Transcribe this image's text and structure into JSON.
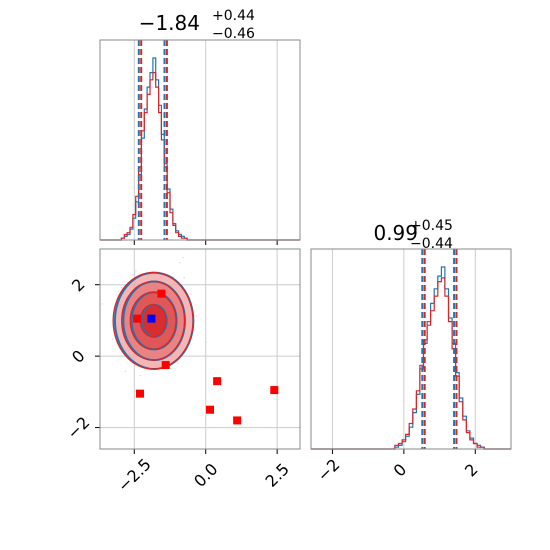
{
  "colors": {
    "blue": "#1f77b4",
    "red": "#d62728",
    "grid": "#cccccc",
    "frame": "#888888",
    "marker_red": "#ff0000",
    "marker_blue": "#0000ff"
  },
  "chart_data": [
    {
      "type": "step-histogram",
      "title": {
        "main": "−1.84",
        "upper": "+0.44",
        "lower": "−0.46"
      },
      "parameter": "x",
      "xlim": [
        -3.7,
        3.3
      ],
      "x_ticks": [
        -2.5,
        0.0,
        2.5
      ],
      "x_tick_labels": [],
      "median": -1.84,
      "quantiles": [
        -2.3,
        -1.4
      ],
      "series": [
        {
          "color": "blue",
          "x": [
            -2.9,
            -2.8,
            -2.7,
            -2.6,
            -2.5,
            -2.4,
            -2.3,
            -2.2,
            -2.1,
            -2.0,
            -1.9,
            -1.8,
            -1.7,
            -1.6,
            -1.5,
            -1.4,
            -1.3,
            -1.2,
            -1.1,
            -1.0,
            -0.9,
            -0.8,
            -0.7
          ],
          "counts": [
            0.01,
            0.02,
            0.03,
            0.06,
            0.12,
            0.21,
            0.36,
            0.56,
            0.72,
            0.84,
            0.92,
            1.0,
            0.88,
            0.74,
            0.58,
            0.42,
            0.28,
            0.17,
            0.09,
            0.05,
            0.03,
            0.02,
            0.01
          ]
        },
        {
          "color": "red",
          "x": [
            -2.9,
            -2.8,
            -2.7,
            -2.6,
            -2.5,
            -2.4,
            -2.3,
            -2.2,
            -2.1,
            -2.0,
            -1.9,
            -1.8,
            -1.7,
            -1.6,
            -1.5,
            -1.4,
            -1.3,
            -1.2,
            -1.1,
            -1.0,
            -0.9,
            -0.8,
            -0.7
          ],
          "counts": [
            0.01,
            0.03,
            0.04,
            0.07,
            0.14,
            0.24,
            0.4,
            0.6,
            0.7,
            0.8,
            0.88,
            0.92,
            0.84,
            0.7,
            0.55,
            0.4,
            0.26,
            0.15,
            0.08,
            0.04,
            0.02,
            0.01,
            0.01
          ]
        }
      ]
    },
    {
      "type": "step-histogram",
      "title": {
        "main": "0.99",
        "upper": "+0.45",
        "lower": "−0.44"
      },
      "parameter": "y",
      "xlim": [
        -2.6,
        3.0
      ],
      "x_ticks": [
        -2,
        0,
        2
      ],
      "x_tick_labels": [
        "−2",
        "0",
        "2"
      ],
      "median": 0.99,
      "quantiles": [
        0.55,
        1.44
      ],
      "series": [
        {
          "color": "blue",
          "x": [
            -0.2,
            -0.1,
            0.0,
            0.1,
            0.2,
            0.3,
            0.4,
            0.5,
            0.6,
            0.7,
            0.8,
            0.9,
            1.0,
            1.1,
            1.2,
            1.3,
            1.4,
            1.5,
            1.6,
            1.7,
            1.8,
            1.9,
            2.0,
            2.1,
            2.2
          ],
          "counts": [
            0.01,
            0.02,
            0.04,
            0.07,
            0.12,
            0.2,
            0.3,
            0.44,
            0.58,
            0.7,
            0.8,
            0.88,
            0.95,
            1.0,
            0.88,
            0.72,
            0.58,
            0.42,
            0.28,
            0.18,
            0.1,
            0.06,
            0.03,
            0.02,
            0.01
          ]
        },
        {
          "color": "red",
          "x": [
            -0.2,
            -0.1,
            0.0,
            0.1,
            0.2,
            0.3,
            0.4,
            0.5,
            0.6,
            0.7,
            0.8,
            0.9,
            1.0,
            1.1,
            1.2,
            1.3,
            1.4,
            1.5,
            1.6,
            1.7,
            1.8,
            1.9,
            2.0,
            2.1,
            2.2
          ],
          "counts": [
            0.02,
            0.03,
            0.05,
            0.08,
            0.14,
            0.22,
            0.32,
            0.46,
            0.6,
            0.68,
            0.76,
            0.84,
            0.92,
            0.94,
            0.84,
            0.7,
            0.55,
            0.4,
            0.26,
            0.16,
            0.09,
            0.05,
            0.03,
            0.01,
            0.01
          ]
        }
      ]
    },
    {
      "type": "scatter-contour",
      "xlim": [
        -3.7,
        3.3
      ],
      "ylim": [
        -2.6,
        3.0
      ],
      "x_ticks": [
        -2.5,
        0.0,
        2.5
      ],
      "x_tick_labels": [
        "−2.5",
        "0.0",
        "2.5"
      ],
      "y_ticks": [
        -2,
        0,
        2
      ],
      "y_tick_labels": [
        "−2",
        "0",
        "2"
      ],
      "center": [
        -1.84,
        0.99
      ],
      "contour_levels": [
        {
          "rx": 0.45,
          "ry": 0.45
        },
        {
          "rx": 0.8,
          "ry": 0.8
        },
        {
          "rx": 1.1,
          "ry": 1.1
        },
        {
          "rx": 1.4,
          "ry": 1.35
        }
      ],
      "markers_red": [
        [
          -2.4,
          1.05
        ],
        [
          -1.55,
          1.75
        ],
        [
          -1.4,
          -0.25
        ],
        [
          -2.3,
          -1.05
        ],
        [
          0.4,
          -0.7
        ],
        [
          0.15,
          -1.5
        ],
        [
          1.1,
          -1.8
        ],
        [
          2.4,
          -0.95
        ]
      ],
      "marker_blue": [
        -1.9,
        1.05
      ]
    }
  ]
}
